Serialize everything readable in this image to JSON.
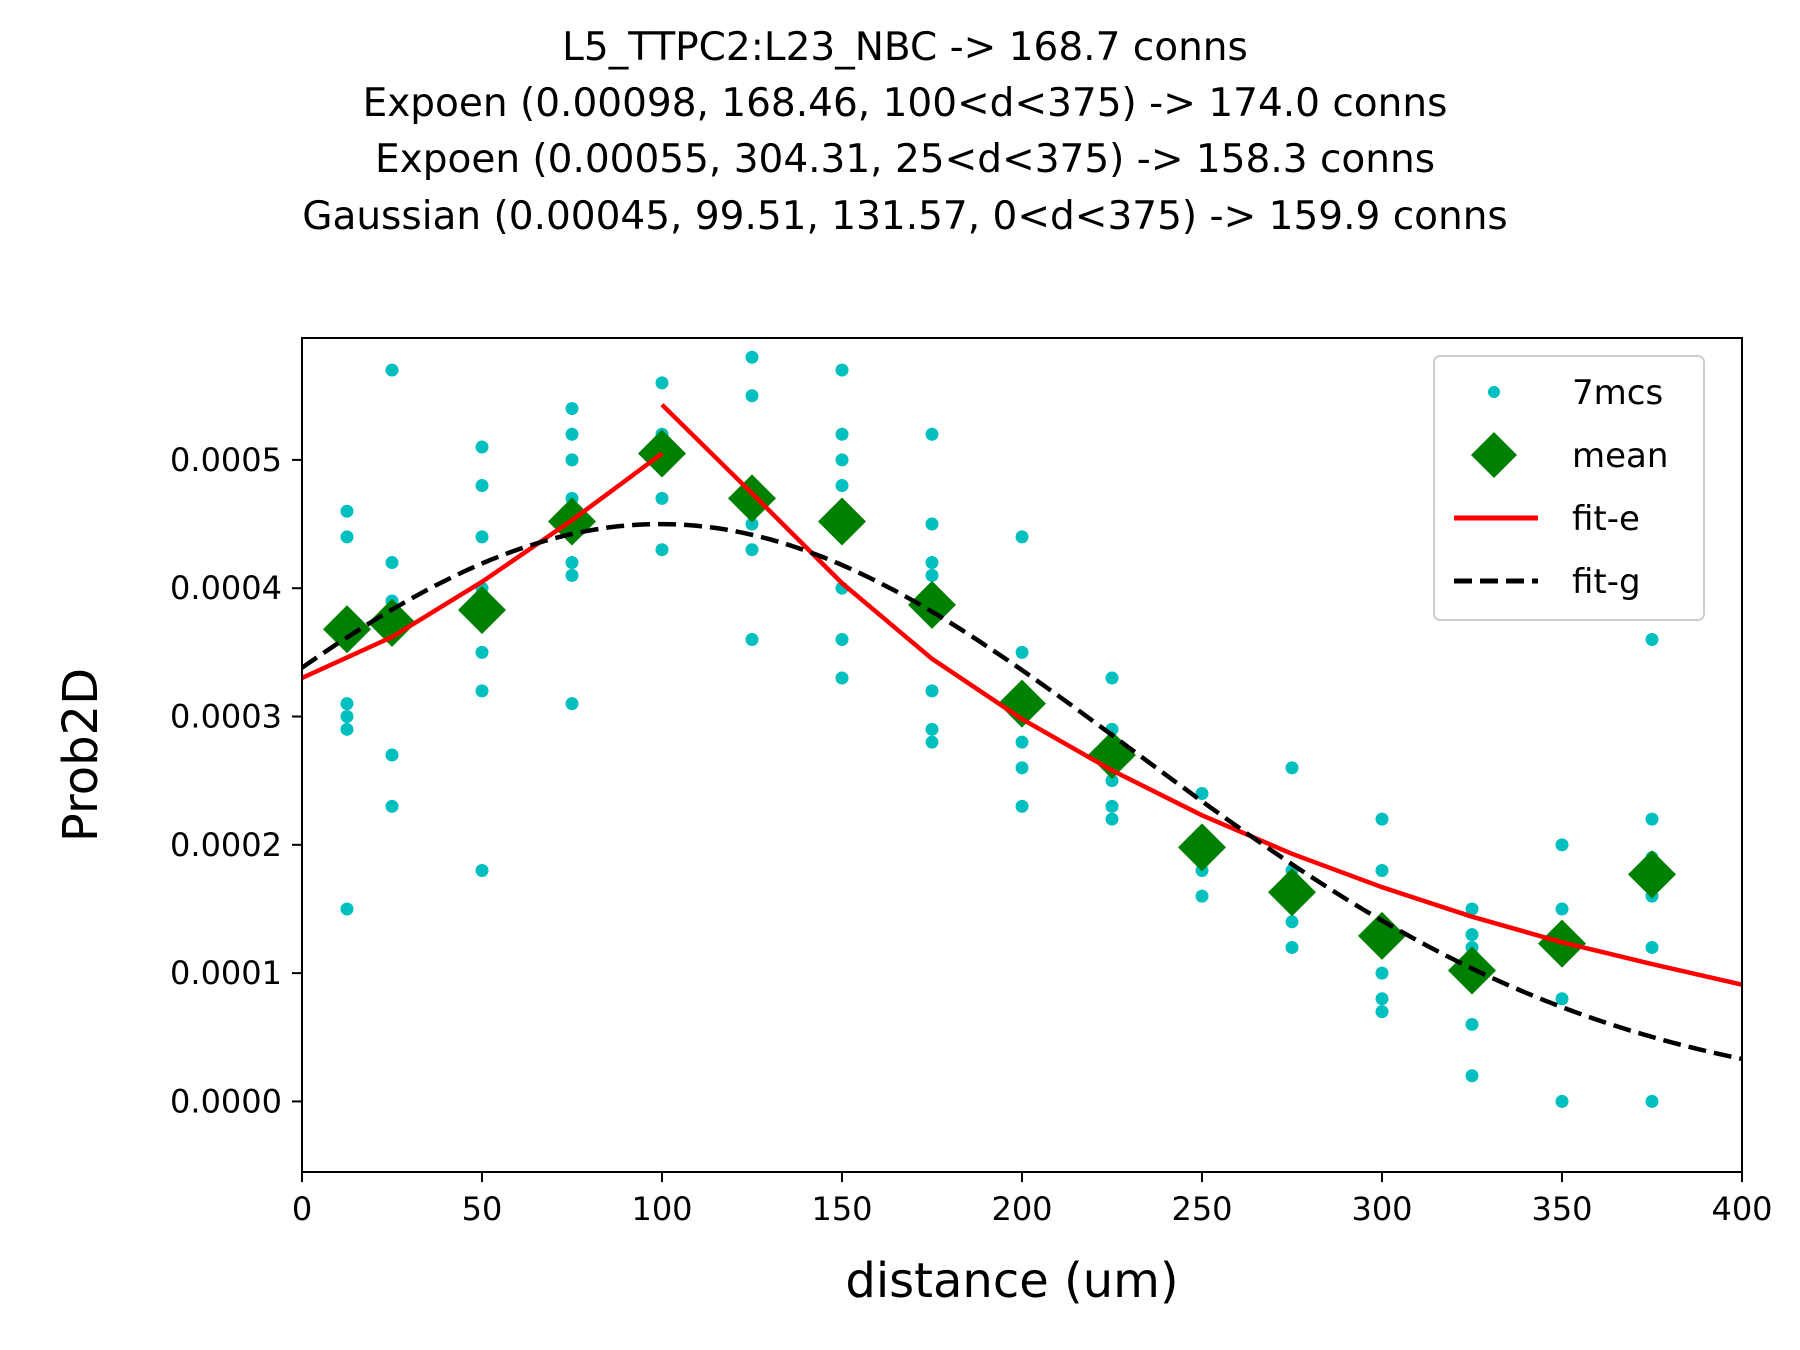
{
  "chart_data": {
    "type": "scatter",
    "title_lines": [
      "L5_TTPC2:L23_NBC -> 168.7 conns",
      "Expoen (0.00098, 168.46, 100<d<375) -> 174.0 conns",
      "Expoen (0.00055, 304.31, 25<d<375) -> 158.3 conns",
      "Gaussian (0.00045, 99.51, 131.57, 0<d<375) -> 159.9 conns"
    ],
    "xlabel": "distance (um)",
    "ylabel": "Prob2D",
    "xlim": [
      0,
      400
    ],
    "ylim": [
      -5.5e-05,
      0.000595
    ],
    "x_ticks": [
      0,
      50,
      100,
      150,
      200,
      250,
      300,
      350,
      400
    ],
    "x_tick_labels": [
      "0",
      "50",
      "100",
      "150",
      "200",
      "250",
      "300",
      "350",
      "400"
    ],
    "y_ticks": [
      0,
      0.0001,
      0.0002,
      0.0003,
      0.0004,
      0.0005
    ],
    "y_tick_labels": [
      "0.0000",
      "0.0001",
      "0.0002",
      "0.0003",
      "0.0004",
      "0.0005"
    ],
    "grid": false,
    "legend_position": "top-right",
    "series": [
      {
        "name": "7mcs",
        "kind": "points",
        "color": "#00bfbf",
        "points": [
          [
            12.5,
            0.00046
          ],
          [
            12.5,
            0.00044
          ],
          [
            12.5,
            0.00037
          ],
          [
            12.5,
            0.00031
          ],
          [
            12.5,
            0.0003
          ],
          [
            12.5,
            0.00029
          ],
          [
            12.5,
            0.00015
          ],
          [
            25,
            0.00057
          ],
          [
            25,
            0.00042
          ],
          [
            25,
            0.00039
          ],
          [
            25,
            0.00038
          ],
          [
            25,
            0.00027
          ],
          [
            25,
            0.00023
          ],
          [
            50,
            0.00051
          ],
          [
            50,
            0.00048
          ],
          [
            50,
            0.00044
          ],
          [
            50,
            0.0004
          ],
          [
            50,
            0.00035
          ],
          [
            50,
            0.00032
          ],
          [
            50,
            0.00018
          ],
          [
            75,
            0.00054
          ],
          [
            75,
            0.00052
          ],
          [
            75,
            0.0005
          ],
          [
            75,
            0.00047
          ],
          [
            75,
            0.00042
          ],
          [
            75,
            0.00041
          ],
          [
            75,
            0.00031
          ],
          [
            100,
            0.00056
          ],
          [
            100,
            0.00052
          ],
          [
            100,
            0.0005
          ],
          [
            100,
            0.00047
          ],
          [
            100,
            0.00043
          ],
          [
            125,
            0.00058
          ],
          [
            125,
            0.00055
          ],
          [
            125,
            0.00048
          ],
          [
            125,
            0.00045
          ],
          [
            125,
            0.00043
          ],
          [
            125,
            0.00036
          ],
          [
            150,
            0.00057
          ],
          [
            150,
            0.00052
          ],
          [
            150,
            0.0005
          ],
          [
            150,
            0.00048
          ],
          [
            150,
            0.0004
          ],
          [
            150,
            0.00036
          ],
          [
            150,
            0.00033
          ],
          [
            175,
            0.00052
          ],
          [
            175,
            0.00045
          ],
          [
            175,
            0.00042
          ],
          [
            175,
            0.00041
          ],
          [
            175,
            0.00032
          ],
          [
            175,
            0.00029
          ],
          [
            175,
            0.00028
          ],
          [
            200,
            0.00044
          ],
          [
            200,
            0.00035
          ],
          [
            200,
            0.00031
          ],
          [
            200,
            0.00028
          ],
          [
            200,
            0.00026
          ],
          [
            200,
            0.00023
          ],
          [
            225,
            0.00033
          ],
          [
            225,
            0.00029
          ],
          [
            225,
            0.00025
          ],
          [
            225,
            0.00023
          ],
          [
            225,
            0.00022
          ],
          [
            250,
            0.00024
          ],
          [
            250,
            0.00018
          ],
          [
            250,
            0.00016
          ],
          [
            275,
            0.00026
          ],
          [
            275,
            0.00018
          ],
          [
            275,
            0.00014
          ],
          [
            275,
            0.00012
          ],
          [
            300,
            0.00022
          ],
          [
            300,
            0.00018
          ],
          [
            300,
            0.0001
          ],
          [
            300,
            8e-05
          ],
          [
            300,
            7e-05
          ],
          [
            325,
            0.00015
          ],
          [
            325,
            0.00013
          ],
          [
            325,
            0.00012
          ],
          [
            325,
            6e-05
          ],
          [
            325,
            2e-05
          ],
          [
            350,
            0.0002
          ],
          [
            350,
            0.00015
          ],
          [
            350,
            8e-05
          ],
          [
            350,
            0.0
          ],
          [
            375,
            0.00036
          ],
          [
            375,
            0.00022
          ],
          [
            375,
            0.00019
          ],
          [
            375,
            0.00016
          ],
          [
            375,
            0.00012
          ],
          [
            375,
            0.0
          ]
        ]
      },
      {
        "name": "mean",
        "kind": "markers",
        "color": "#008000",
        "points": [
          [
            12.5,
            0.000368
          ],
          [
            25,
            0.000373
          ],
          [
            50,
            0.000383
          ],
          [
            75,
            0.000452
          ],
          [
            100,
            0.000505
          ],
          [
            125,
            0.00047
          ],
          [
            150,
            0.000452
          ],
          [
            175,
            0.000387
          ],
          [
            200,
            0.00031
          ],
          [
            225,
            0.00027
          ],
          [
            250,
            0.000198
          ],
          [
            275,
            0.000163
          ],
          [
            300,
            0.000129
          ],
          [
            325,
            0.000102
          ],
          [
            350,
            0.000123
          ],
          [
            375,
            0.000177
          ]
        ]
      },
      {
        "name": "fit-e",
        "kind": "line",
        "color": "#ff0000",
        "segments": [
          [
            [
              0,
              0.00033
            ],
            [
              25,
              0.000362
            ],
            [
              50,
              0.000405
            ],
            [
              75,
              0.000453
            ],
            [
              100,
              0.000505
            ]
          ],
          [
            [
              100,
              0.000543
            ],
            [
              125,
              0.000474
            ],
            [
              150,
              0.000404
            ],
            [
              175,
              0.000345
            ],
            [
              200,
              0.000298
            ],
            [
              225,
              0.000258
            ],
            [
              250,
              0.000223
            ],
            [
              275,
              0.000193
            ],
            [
              300,
              0.000167
            ],
            [
              325,
              0.000144
            ],
            [
              350,
              0.000124
            ],
            [
              375,
              0.000107
            ],
            [
              400,
              9.1e-05
            ]
          ]
        ]
      },
      {
        "name": "fit-g",
        "kind": "dashed-line",
        "color": "#000000",
        "gaussian": {
          "amplitude": 0.00045,
          "mean": 99.51,
          "sigma": 131.57,
          "x_range": [
            0,
            400
          ]
        }
      }
    ]
  }
}
